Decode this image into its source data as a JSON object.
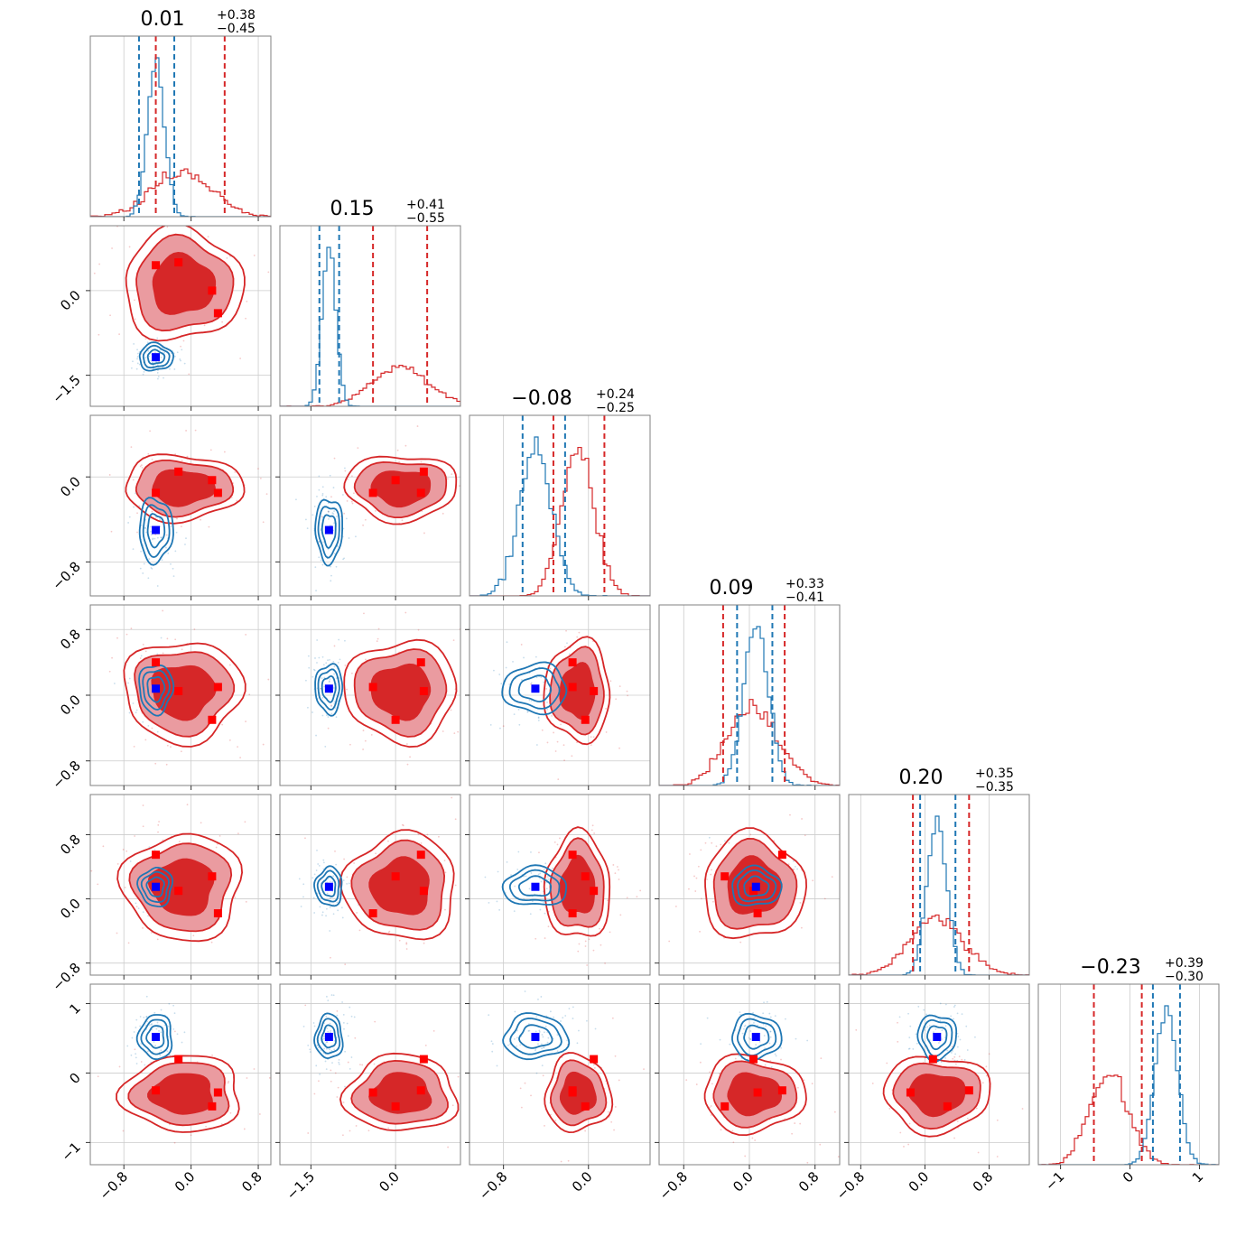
{
  "chart_data": {
    "type": "corner",
    "n_params": 6,
    "colors": {
      "red": "#d62728",
      "red_fill_dark": "#d62728",
      "red_fill_light": "#ea9ba0",
      "blue": "#1f77b4",
      "marker_blue": "#0000ff",
      "marker_red": "#ff0000"
    },
    "grid": true,
    "titles": [
      {
        "main": "0.01",
        "plus": "+0.38",
        "minus": "−0.45"
      },
      {
        "main": "0.15",
        "plus": "+0.41",
        "minus": "−0.55"
      },
      {
        "main": "−0.08",
        "plus": "+0.24",
        "minus": "−0.25"
      },
      {
        "main": "0.09",
        "plus": "+0.33",
        "minus": "−0.41"
      },
      {
        "main": "0.20",
        "plus": "+0.35",
        "minus": "−0.35"
      },
      {
        "main": "−0.23",
        "plus": "+0.39",
        "minus": "−0.30"
      }
    ],
    "params": [
      {
        "range": [
          -1.2,
          0.95
        ],
        "ticks": [
          -0.8,
          0.0,
          0.8
        ],
        "tick_labels": [
          "−0.8",
          "0.0",
          "0.8"
        ]
      },
      {
        "range": [
          -2.05,
          1.15
        ],
        "ticks": [
          -1.5,
          0.0
        ],
        "tick_labels": [
          "−1.5",
          "0.0"
        ]
      },
      {
        "range": [
          -1.12,
          0.58
        ],
        "ticks": [
          -0.8,
          0.0
        ],
        "tick_labels": [
          "−0.8",
          "0.0"
        ]
      },
      {
        "range": [
          -1.1,
          1.1
        ],
        "ticks": [
          -0.8,
          0.0,
          0.8
        ],
        "tick_labels": [
          "−0.8",
          "0.0",
          "0.8"
        ]
      },
      {
        "range": [
          -0.95,
          1.3
        ],
        "ticks": [
          -0.8,
          0.0,
          0.8
        ],
        "tick_labels": [
          "−0.8",
          "0.0",
          "0.8"
        ]
      },
      {
        "range": [
          -1.32,
          1.28
        ],
        "ticks": [
          -1,
          0,
          1
        ],
        "tick_labels": [
          "−1",
          "0",
          "1"
        ]
      }
    ],
    "modes": [
      {
        "name": "",
        "color": "red",
        "center": [
          -0.1,
          0.1,
          -0.1,
          0.05,
          0.15,
          -0.3
        ],
        "sd": [
          0.32,
          0.45,
          0.14,
          0.28,
          0.3,
          0.25
        ]
      },
      {
        "name": "",
        "color": "blue",
        "center": [
          -0.42,
          -1.18,
          -0.5,
          0.08,
          0.15,
          0.52
        ],
        "sd": [
          0.1,
          0.12,
          0.15,
          0.15,
          0.12,
          0.16
        ]
      }
    ],
    "quantile_lines": {
      "red": [
        [
          -0.42,
          0.4
        ],
        [
          -0.4,
          0.56
        ],
        [
          -0.33,
          0.15
        ],
        [
          -0.32,
          0.43
        ],
        [
          -0.15,
          0.55
        ],
        [
          -0.52,
          0.17
        ]
      ],
      "blue": [
        [
          -0.62,
          -0.2
        ],
        [
          -1.35,
          -1.0
        ],
        [
          -0.62,
          -0.22
        ],
        [
          -0.15,
          0.28
        ],
        [
          -0.06,
          0.38
        ],
        [
          0.33,
          0.72
        ]
      ]
    },
    "markers": {
      "blue": [
        -0.42,
        -1.18,
        -0.5,
        0.08,
        0.15,
        0.52
      ],
      "red": [
        [
          -0.42,
          0.45,
          -0.15,
          0.4,
          0.55,
          -0.25
        ],
        [
          -0.15,
          0.5,
          0.05,
          0.05,
          0.1,
          0.2
        ],
        [
          0.25,
          0.0,
          -0.03,
          -0.3,
          0.28,
          -0.48
        ],
        [
          0.32,
          -0.4,
          -0.15,
          0.1,
          -0.18,
          -0.28
        ]
      ]
    }
  }
}
